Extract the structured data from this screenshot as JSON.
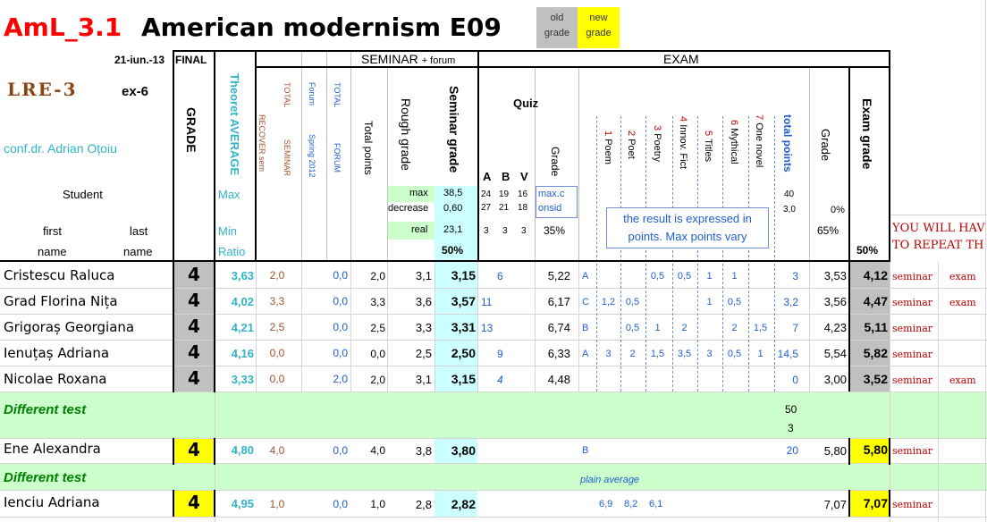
{
  "header": {
    "code": "AmL_3.1",
    "title": "American modernism E09",
    "old_grade": [
      "old",
      "grade"
    ],
    "new_grade": [
      "new",
      "grade"
    ],
    "date": "21-iun.-13",
    "final": "FINAL",
    "lre": "LRE-3",
    "ex": "ex-6",
    "teacher": "conf.dr. Adrian Oțoiu",
    "student": "Student",
    "first": "first",
    "last": "last",
    "name_first": "name",
    "name_last": "name",
    "grade": "GRADE",
    "theoret": "Theoret AVERAGE",
    "max": "Max",
    "min": "Min",
    "ratio": "Ratio",
    "seminar_forum": "SEMINAR",
    "forum_small": "+ forum",
    "exam": "EXAM",
    "recover": "RECOVER sem",
    "total_seminar": [
      "TOTAL",
      "SEMINAR"
    ],
    "forum_spring": [
      "Forum",
      "Spring 2012"
    ],
    "total_forum": [
      "TOTAL",
      "FORUM"
    ],
    "total_points": "Total points",
    "rough_grade": "Rough grade",
    "seminar_grade": "Seminar grade",
    "max_label": "max",
    "max_val": "38,5",
    "decrease_label": "decrease",
    "decrease_val": "0,60",
    "real_label": "real",
    "real_val": "23,1",
    "pct50a": "50%",
    "quiz": "Quiz",
    "abv": [
      "A",
      "B",
      "V"
    ],
    "abv_row1": [
      "24",
      "19",
      "16"
    ],
    "abv_row2": [
      "27",
      "21",
      "18"
    ],
    "abv_row3": [
      "3",
      "3",
      "3"
    ],
    "quiz_grade": "Grade",
    "maxc": [
      "max.c",
      "onsid"
    ],
    "pct35": "35%",
    "exam_cols": [
      {
        "n": "1",
        "t": "Poem"
      },
      {
        "n": "2",
        "t": "Poet"
      },
      {
        "n": "3",
        "t": "Poetry"
      },
      {
        "n": "4",
        "t": "Innov. Fict"
      },
      {
        "n": "5",
        "t": "Titles"
      },
      {
        "n": "6",
        "t": "Mythical"
      },
      {
        "n": "7",
        "t": "One novel"
      }
    ],
    "total_pts_label": "total points",
    "total_pts_max": "40",
    "total_pts_30": "3,0",
    "note": [
      "the result is expressed in",
      "points. Max points vary"
    ],
    "exam_grade_col": "Grade",
    "pct0": "0%",
    "pct65": "65%",
    "exam_grade": "Exam grade",
    "pct50b": "50%",
    "warn": [
      "YOU WILL HAV",
      "TO REPEAT TH"
    ]
  },
  "rows": [
    {
      "name": "Cristescu Raluca",
      "grade": "4",
      "avg": "3,63",
      "rec": "2,0",
      "forum": "0,0",
      "tp": "2,0",
      "rough": "3,1",
      "sem": "3,15",
      "quiz": "6",
      "qg": "5,22",
      "letter": "A",
      "p": [
        "",
        "",
        "0,5",
        "0,5",
        "1",
        "1",
        ""
      ],
      "tot": "3",
      "eg": "3,53",
      "egr": "4,12",
      "r1": "seminar",
      "r2": "exam"
    },
    {
      "name": "Grad Florina Nița",
      "grade": "4",
      "avg": "4,02",
      "rec": "3,3",
      "forum": "0,0",
      "tp": "3,3",
      "rough": "3,6",
      "sem": "3,57",
      "quiz": "11",
      "qg": "6,17",
      "letter": "C",
      "p": [
        "1,2",
        "0,5",
        "",
        "",
        "1",
        "0,5",
        ""
      ],
      "tot": "3,2",
      "eg": "3,56",
      "egr": "4,47",
      "r1": "seminar",
      "r2": "exam"
    },
    {
      "name": "Grigoraș Georgiana",
      "grade": "4",
      "avg": "4,21",
      "rec": "2,5",
      "forum": "0,0",
      "tp": "2,5",
      "rough": "3,3",
      "sem": "3,31",
      "quiz": "13",
      "qg": "6,74",
      "letter": "B",
      "p": [
        "",
        "0,5",
        "1",
        "2",
        "",
        "2",
        "1,5"
      ],
      "tot": "7",
      "eg": "4,23",
      "egr": "5,11",
      "r1": "seminar",
      "r2": ""
    },
    {
      "name": "Ienuțaș Adriana",
      "grade": "4",
      "avg": "4,16",
      "rec": "0,0",
      "forum": "0,0",
      "tp": "0,0",
      "rough": "2,5",
      "sem": "2,50",
      "quiz": "9",
      "qg": "6,33",
      "letter": "A",
      "p": [
        "3",
        "2",
        "1,5",
        "3,5",
        "3",
        "0,5",
        "1"
      ],
      "tot": "14,5",
      "eg": "5,54",
      "egr": "5,82",
      "r1": "seminar",
      "r2": ""
    },
    {
      "name": "Nicolae Roxana",
      "grade": "4",
      "avg": "3,33",
      "rec": "0,0",
      "forum": "2,0",
      "tp": "2,0",
      "rough": "3,1",
      "sem": "3,15",
      "quiz": "4",
      "qg": "4,48",
      "letter": "",
      "p": [
        "",
        "",
        "",
        "",
        "",
        "",
        ""
      ],
      "tot": "0",
      "eg": "3,00",
      "egr": "3,52",
      "r1": "seminar",
      "r2": "exam"
    }
  ],
  "diff1": {
    "label": "Different test",
    "v50": "50",
    "v3": "3"
  },
  "ene": {
    "name": "Ene Alexandra",
    "grade": "4",
    "avg": "4,80",
    "rec": "4,0",
    "forum": "0,0",
    "tp": "4,0",
    "rough": "3,8",
    "sem": "3,80",
    "letter": "B",
    "tot": "20",
    "eg": "5,80",
    "egr": "5,80",
    "r1": "seminar"
  },
  "diff2": {
    "label": "Different test",
    "plain": "plain average"
  },
  "ienciu": {
    "name": "Ienciu Adriana",
    "grade": "4",
    "avg": "4,95",
    "rec": "1,0",
    "forum": "0,0",
    "tp": "1,0",
    "rough": "2,8",
    "sem": "2,82",
    "p": [
      "6,9",
      "8,2",
      "6,1"
    ],
    "eg": "7,07",
    "egr": "7,07",
    "r1": "seminar"
  },
  "colors": {
    "teal": "#31b3c8",
    "red": "#c00000",
    "yellow": "#ffff00",
    "green_fill": "#ccffcc",
    "cyan_fill": "#ccffff",
    "gray_fill": "#c0c0c0"
  }
}
